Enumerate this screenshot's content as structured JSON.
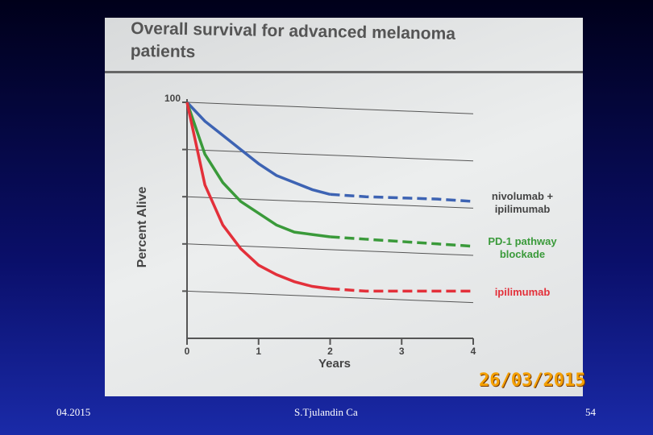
{
  "chart_data": {
    "type": "line",
    "title": "Overall survival for advanced melanoma patients",
    "y_label": "Percent Alive",
    "x_label": "Years",
    "x": [
      0,
      0.25,
      0.5,
      0.75,
      1,
      1.25,
      1.5,
      1.75,
      2,
      2.5,
      3,
      3.5,
      4
    ],
    "xlim": [
      0,
      4
    ],
    "xticks": [
      0,
      1,
      2,
      3,
      4
    ],
    "ylim": [
      0,
      100
    ],
    "yticks": [
      100
    ],
    "grid_y": [
      20,
      40,
      60,
      80,
      100
    ],
    "projected_from_x": 2,
    "series": [
      {
        "name": "nivolumab + ipilimumab",
        "color": "#3d63b3",
        "label_color": "#444444",
        "values": [
          100,
          92,
          86,
          80,
          74,
          69,
          66,
          63,
          61,
          60,
          59.5,
          59,
          58
        ]
      },
      {
        "name": "PD-1 pathway blockade",
        "color": "#3a9a3a",
        "label_color": "#3a9a3a",
        "values": [
          100,
          78,
          66,
          58,
          53,
          48,
          45,
          44,
          43,
          42,
          41,
          40,
          39
        ]
      },
      {
        "name": "ipilimumab",
        "color": "#e3303a",
        "label_color": "#e3303a",
        "values": [
          100,
          65,
          48,
          38,
          31,
          27,
          24,
          22,
          21,
          20,
          20,
          20,
          20
        ]
      }
    ]
  },
  "photo_timestamp": "26/03/2015",
  "footer": {
    "date": "04.2015",
    "author": "S.Tjulandin Ca",
    "page": "54"
  }
}
